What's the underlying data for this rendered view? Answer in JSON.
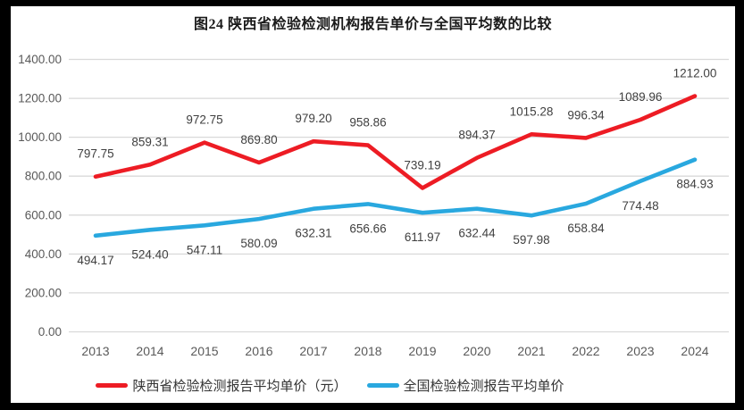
{
  "chart_data": {
    "type": "line",
    "title": "图24 陕西省检验检测机构报告单价与全国平均数的比较",
    "categories": [
      "2013",
      "2014",
      "2015",
      "2016",
      "2017",
      "2018",
      "2019",
      "2020",
      "2021",
      "2022",
      "2023",
      "2024"
    ],
    "series": [
      {
        "name": "陕西省检验检测报告平均单价（元）",
        "color": "#ED1C24",
        "values": [
          797.75,
          859.31,
          972.75,
          869.8,
          979.2,
          958.86,
          739.19,
          894.37,
          1015.28,
          996.34,
          1089.96,
          1212.0
        ]
      },
      {
        "name": "全国检验检测报告平均单价",
        "color": "#29A8DF",
        "values": [
          494.17,
          524.4,
          547.11,
          580.09,
          632.31,
          656.66,
          611.97,
          632.44,
          597.98,
          658.84,
          774.48,
          884.93
        ]
      }
    ],
    "xlabel": "",
    "ylabel": "",
    "ylim": [
      0,
      1400
    ],
    "ytick_step": 200,
    "ytick_labels": [
      "0.00",
      "200.00",
      "400.00",
      "600.00",
      "800.00",
      "1000.00",
      "1200.00",
      "1400.00"
    ],
    "grid": true,
    "legend_position": "bottom",
    "data_labels_decimals": 2,
    "colors": {
      "gridline": "#D9D9D9",
      "axis_text": "#595959",
      "label_text": "#404040",
      "frame": "#000000",
      "background": "#FFFFFF"
    }
  }
}
